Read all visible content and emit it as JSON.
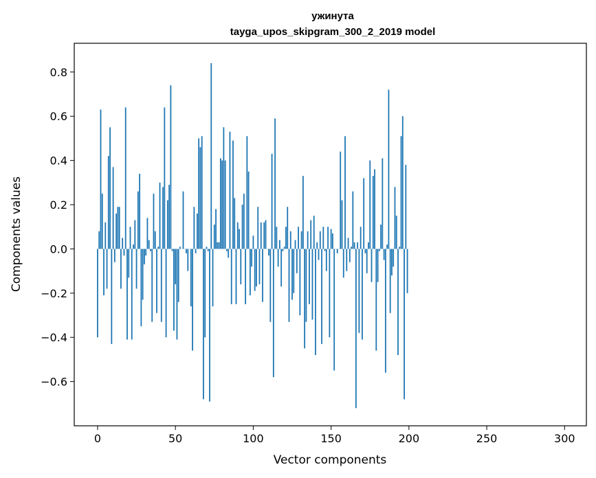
{
  "chart_data": {
    "type": "bar",
    "title": "ужинута",
    "subtitle": "tayga_upos_skipgram_300_2_2019 model",
    "xlabel": "Vector components",
    "ylabel": "Components values",
    "xlim": [
      -15,
      314
    ],
    "ylim": [
      -0.8,
      0.93
    ],
    "grid": false,
    "legend": "none",
    "bar_color": "#1f77b4",
    "xticks": [
      0,
      50,
      100,
      150,
      200,
      250,
      300
    ],
    "xtick_labels": [
      "0",
      "50",
      "100",
      "150",
      "200",
      "250",
      "300"
    ],
    "yticks": [
      -0.6,
      -0.4,
      -0.2,
      0.0,
      0.2,
      0.4,
      0.6,
      0.8
    ],
    "ytick_labels": [
      "−0.6",
      "−0.4",
      "−0.2",
      "0.0",
      "0.2",
      "0.4",
      "0.6",
      "0.8"
    ],
    "values": [
      -0.4,
      0.08,
      0.63,
      0.25,
      -0.21,
      0.12,
      -0.18,
      0.42,
      0.55,
      -0.43,
      0.37,
      -0.06,
      0.16,
      0.19,
      0.19,
      -0.18,
      0.05,
      -0.03,
      0.64,
      -0.41,
      -0.13,
      0.1,
      -0.41,
      0.02,
      0.13,
      -0.18,
      0.26,
      0.34,
      -0.35,
      -0.23,
      -0.07,
      -0.03,
      0.14,
      0.04,
      -0.01,
      -0.33,
      0.25,
      0.08,
      -0.29,
      0.01,
      0.3,
      -0.33,
      0.28,
      0.64,
      -0.4,
      0.22,
      0.29,
      0.74,
      -0.01,
      -0.37,
      -0.16,
      -0.41,
      -0.24,
      0.01,
      0.0,
      0.26,
      0.0,
      -0.02,
      -0.1,
      0.0,
      -0.26,
      -0.46,
      0.19,
      -0.02,
      0.16,
      0.5,
      0.46,
      0.51,
      -0.68,
      -0.4,
      0.01,
      -0.01,
      -0.69,
      0.84,
      -0.26,
      0.11,
      0.18,
      0.03,
      0.03,
      0.41,
      0.4,
      0.55,
      0.4,
      -0.01,
      -0.04,
      0.53,
      -0.25,
      0.49,
      0.23,
      -0.25,
      0.12,
      0.09,
      -0.16,
      0.2,
      0.25,
      -0.25,
      0.51,
      0.35,
      -0.21,
      -0.08,
      0.06,
      -0.19,
      -0.17,
      0.19,
      -0.16,
      0.12,
      -0.24,
      0.12,
      0.13,
      0.0,
      -0.03,
      -0.33,
      0.43,
      -0.58,
      0.59,
      0.1,
      -0.08,
      0.04,
      -0.17,
      -0.01,
      0.01,
      0.1,
      0.19,
      -0.33,
      0.08,
      -0.23,
      -0.2,
      0.04,
      -0.11,
      0.1,
      -0.3,
      0.08,
      0.33,
      -0.45,
      -0.33,
      0.08,
      -0.25,
      0.13,
      -0.32,
      0.15,
      -0.48,
      0.03,
      -0.05,
      0.08,
      -0.43,
      0.1,
      -0.01,
      -0.1,
      0.1,
      -0.4,
      0.09,
      0.07,
      -0.55,
      0.0,
      -0.02,
      0.0,
      0.44,
      0.22,
      -0.13,
      0.51,
      -0.1,
      0.05,
      -0.06,
      0.01,
      0.26,
      0.03,
      -0.72,
      0.03,
      -0.38,
      0.1,
      -0.41,
      0.32,
      -0.02,
      -0.11,
      0.03,
      0.4,
      -0.15,
      0.33,
      0.36,
      -0.46,
      -0.15,
      -0.01,
      0.11,
      0.41,
      -0.05,
      -0.56,
      0.02,
      0.72,
      -0.29,
      -0.12,
      -0.08,
      0.28,
      0.15,
      -0.48,
      0.01,
      0.51,
      0.6,
      -0.68,
      0.38,
      -0.2
    ]
  }
}
